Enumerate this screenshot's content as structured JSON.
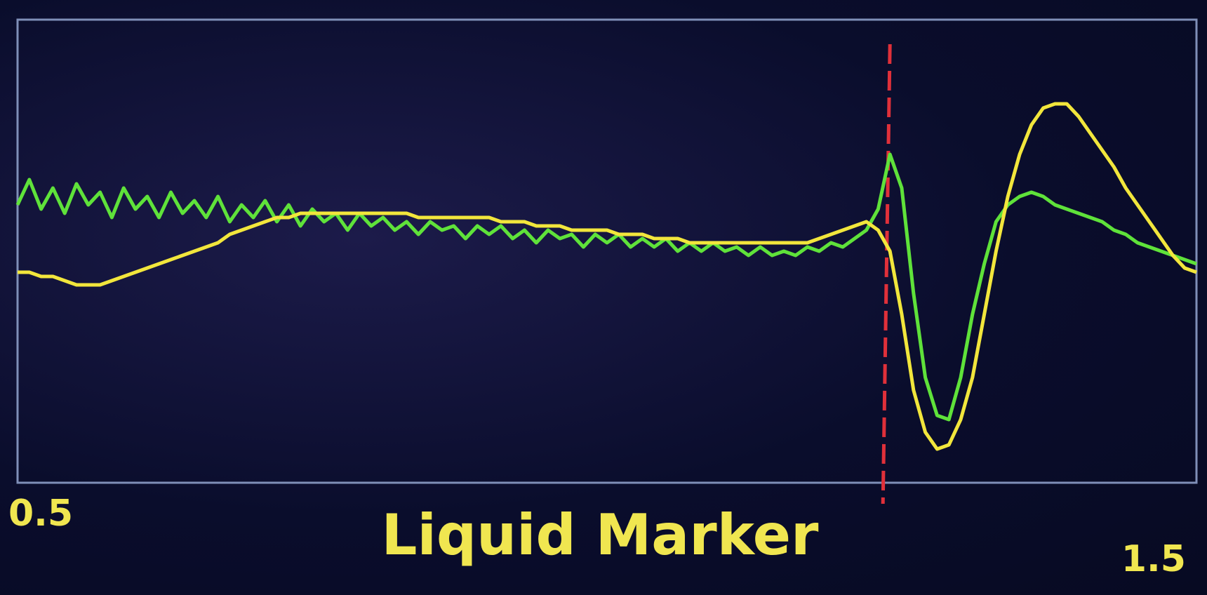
{
  "chart_data": {
    "type": "line",
    "title": "Liquid Marker",
    "x": [
      0.5,
      0.51,
      0.52,
      0.53,
      0.54,
      0.55,
      0.56,
      0.57,
      0.58,
      0.59,
      0.6,
      0.61,
      0.62,
      0.63,
      0.64,
      0.65,
      0.66,
      0.67,
      0.68,
      0.69,
      0.7,
      0.71,
      0.72,
      0.73,
      0.74,
      0.75,
      0.76,
      0.77,
      0.78,
      0.79,
      0.8,
      0.81,
      0.82,
      0.83,
      0.84,
      0.85,
      0.86,
      0.87,
      0.88,
      0.89,
      0.9,
      0.91,
      0.92,
      0.93,
      0.94,
      0.95,
      0.96,
      0.97,
      0.98,
      0.99,
      1.0,
      1.01,
      1.02,
      1.03,
      1.04,
      1.05,
      1.06,
      1.07,
      1.08,
      1.09,
      1.1,
      1.11,
      1.12,
      1.13,
      1.14,
      1.15,
      1.16,
      1.17,
      1.18,
      1.19,
      1.2,
      1.21,
      1.22,
      1.23,
      1.24,
      1.25,
      1.26,
      1.27,
      1.28,
      1.29,
      1.3,
      1.31,
      1.32,
      1.33,
      1.34,
      1.35,
      1.36,
      1.37,
      1.38,
      1.39,
      1.4,
      1.41,
      1.42,
      1.43,
      1.44,
      1.45,
      1.46,
      1.47,
      1.48,
      1.49,
      1.5
    ],
    "series": [
      {
        "color": "#5fe23a",
        "values": [
          56,
          62,
          55,
          60,
          54,
          61,
          56,
          59,
          53,
          60,
          55,
          58,
          53,
          59,
          54,
          57,
          53,
          58,
          52,
          56,
          53,
          57,
          52,
          56,
          51,
          55,
          52,
          54,
          50,
          54,
          51,
          53,
          50,
          52,
          49,
          52,
          50,
          51,
          48,
          51,
          49,
          51,
          48,
          50,
          47,
          50,
          48,
          49,
          46,
          49,
          47,
          49,
          46,
          48,
          46,
          48,
          45,
          47,
          45,
          47,
          45,
          46,
          44,
          46,
          44,
          45,
          44,
          46,
          45,
          47,
          46,
          48,
          50,
          55,
          68,
          60,
          35,
          15,
          6,
          5,
          15,
          30,
          42,
          52,
          56,
          58,
          59,
          58,
          56,
          55,
          54,
          53,
          52,
          50,
          49,
          47,
          46,
          45,
          44,
          43,
          42
        ]
      },
      {
        "color": "#f2e63c",
        "values": [
          40,
          40,
          39,
          39,
          38,
          37,
          37,
          37,
          38,
          39,
          40,
          41,
          42,
          43,
          44,
          45,
          46,
          47,
          49,
          50,
          51,
          52,
          53,
          53,
          54,
          54,
          54,
          54,
          54,
          54,
          54,
          54,
          54,
          54,
          53,
          53,
          53,
          53,
          53,
          53,
          53,
          52,
          52,
          52,
          51,
          51,
          51,
          50,
          50,
          50,
          50,
          49,
          49,
          49,
          48,
          48,
          48,
          47,
          47,
          47,
          47,
          47,
          47,
          47,
          47,
          47,
          47,
          47,
          48,
          49,
          50,
          51,
          52,
          50,
          45,
          30,
          12,
          2,
          -2,
          -1,
          5,
          15,
          30,
          45,
          58,
          68,
          75,
          79,
          80,
          80,
          77,
          73,
          69,
          65,
          60,
          56,
          52,
          48,
          44,
          41,
          40
        ]
      }
    ],
    "marker_x": 1.24,
    "marker_color": "#e0303a",
    "xlim": [
      0.5,
      1.5
    ],
    "xticks": [
      0.5,
      1.5
    ],
    "ylim": [
      -10,
      100
    ]
  }
}
